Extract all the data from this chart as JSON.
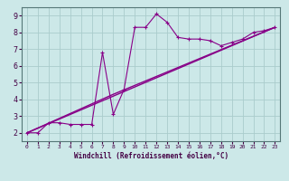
{
  "xlabel": "Windchill (Refroidissement éolien,°C)",
  "background_color": "#cce8e8",
  "grid_color": "#aacccc",
  "line_color": "#880088",
  "xlim": [
    -0.5,
    23.5
  ],
  "ylim": [
    1.5,
    9.5
  ],
  "xticks": [
    0,
    1,
    2,
    3,
    4,
    5,
    6,
    7,
    8,
    9,
    10,
    11,
    12,
    13,
    14,
    15,
    16,
    17,
    18,
    19,
    20,
    21,
    22,
    23
  ],
  "yticks": [
    2,
    3,
    4,
    5,
    6,
    7,
    8,
    9
  ],
  "series1_x": [
    0,
    1,
    2,
    3,
    4,
    5,
    6,
    7,
    8,
    9,
    10,
    11,
    12,
    13,
    14,
    15,
    16,
    17,
    18,
    19,
    20,
    21,
    22,
    23
  ],
  "series1_y": [
    2.0,
    2.0,
    2.6,
    2.6,
    2.5,
    2.5,
    2.5,
    6.8,
    3.1,
    4.6,
    8.3,
    8.3,
    9.1,
    8.6,
    7.7,
    7.6,
    7.6,
    7.5,
    7.2,
    7.4,
    7.6,
    8.0,
    8.1,
    8.3
  ],
  "series2_x": [
    0,
    23
  ],
  "series2_y": [
    2.0,
    8.3
  ],
  "series3_x": [
    0,
    8,
    23
  ],
  "series3_y": [
    2.0,
    4.3,
    8.3
  ],
  "xlabel_fontsize": 5.5,
  "tick_fontsize_x": 4.5,
  "tick_fontsize_y": 6.0,
  "label_color": "#440044",
  "spine_color": "#557777"
}
